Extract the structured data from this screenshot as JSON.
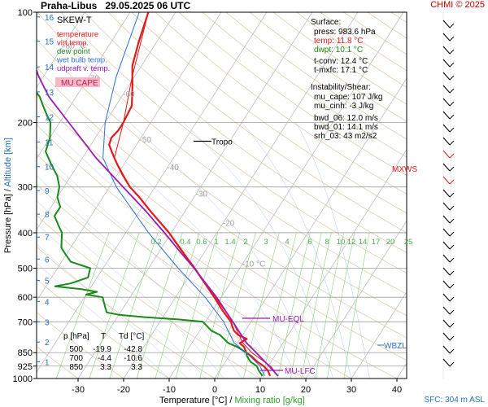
{
  "header": {
    "station": "Praha-Libus",
    "datetime": "29.05.2025 06 UTC",
    "copyright": "CHMI © 2025"
  },
  "footer": {
    "sfc": "SFC: 304 m ASL",
    "xlabel_temp": "Temperature [°C]",
    "xlabel_sep": " / ",
    "xlabel_mix": "Mixing ratio [g/kg]"
  },
  "axes": {
    "ylabel_pressure": "Pressure [hPa]",
    "ylabel_sep": "/",
    "ylabel_alt": "Altitude [km]"
  },
  "legend": {
    "title": "SKEW-T",
    "items": [
      {
        "label": "temperature",
        "color": "#e31a1c"
      },
      {
        "label": "virt.temp.",
        "color": "#e31a1c"
      },
      {
        "label": "dew point",
        "color": "#1a8a1a"
      },
      {
        "label": "wet bulb temp.",
        "color": "#2b6fd6"
      },
      {
        "label": "udpraft v. temp.",
        "color": "#9b1bb3"
      }
    ],
    "mu_cape": "MU CAPE"
  },
  "surface": {
    "title": "Surface:",
    "rows": [
      {
        "label": "press:",
        "value": "983.6 hPa",
        "color": "#000000"
      },
      {
        "label": "temp:",
        "value": "11.8 °C",
        "color": "#e31a1c"
      },
      {
        "label": "dwpt:",
        "value": "10.1 °C",
        "color": "#1a8a1a"
      }
    ],
    "tconv": "t-conv: 12.4 °C",
    "tmxfc": "t-mxfc: 17.1 °C"
  },
  "instability": {
    "title": "Instability/Shear:",
    "rows": [
      "mu_cape: 107 J/kg",
      "mu_cinh: -3 J/kg",
      "bwd_06: 12.0 m/s",
      "bwd_01: 14.1 m/s",
      "srh_03: 43 m2/s2"
    ]
  },
  "table": {
    "header": [
      "p [hPa]",
      "T",
      "Td [°C]"
    ],
    "rows": [
      [
        "500",
        "-19.9",
        "-42.8"
      ],
      [
        "700",
        "-4.4",
        "-10.6"
      ],
      [
        "850",
        "3.3",
        "3.3"
      ]
    ]
  },
  "annotations": {
    "tropo": "Tropo",
    "mxws": "MXWS",
    "mu_eql": "MU-EQL",
    "wbzl": "WBZL",
    "mu_lfc": "MU-LFC"
  },
  "chart_data": {
    "type": "line",
    "y_scale": "log",
    "ylim": [
      1000,
      100
    ],
    "xlim": [
      -35,
      45
    ],
    "x_ticks": [
      "-30",
      "-20",
      "-10",
      "0",
      "10",
      "20",
      "30",
      "40"
    ],
    "pressure_ticks": [
      "100",
      "200",
      "300",
      "400",
      "500",
      "600",
      "700",
      "850",
      "925",
      "1000"
    ],
    "altitude_ticks": [
      "1",
      "2",
      "3",
      "4",
      "5",
      "6",
      "7",
      "8",
      "9",
      "10",
      "11",
      "12",
      "13",
      "14",
      "15",
      "16"
    ],
    "isotherm_labels": [
      "-80 °C",
      "-70",
      "-60",
      "-50",
      "-40",
      "-30",
      "-20",
      "-10 °C"
    ],
    "mixing_ratio_labels": [
      "0.2",
      "0.4",
      "0.6",
      "1",
      "1.4",
      "2",
      "3",
      "4",
      "6",
      "8",
      "10",
      "12",
      "14",
      "17",
      "20",
      "25"
    ],
    "series": [
      {
        "key": "temperature",
        "color": "#e31a1c",
        "points": [
          [
            983.6,
            11.8
          ],
          [
            950,
            10.5
          ],
          [
            925,
            9.0
          ],
          [
            900,
            7.0
          ],
          [
            870,
            5.0
          ],
          [
            850,
            3.3
          ],
          [
            820,
            2.0
          ],
          [
            800,
            0.5
          ],
          [
            780,
            1.5
          ],
          [
            760,
            -1.0
          ],
          [
            740,
            -2.5
          ],
          [
            720,
            -3.5
          ],
          [
            700,
            -4.4
          ],
          [
            650,
            -8.0
          ],
          [
            600,
            -11.5
          ],
          [
            550,
            -15.5
          ],
          [
            500,
            -19.9
          ],
          [
            450,
            -25
          ],
          [
            400,
            -30.5
          ],
          [
            350,
            -37.5
          ],
          [
            320,
            -42
          ],
          [
            300,
            -45.5
          ],
          [
            280,
            -48.5
          ],
          [
            260,
            -51.5
          ],
          [
            250,
            -53
          ],
          [
            240,
            -54.5
          ],
          [
            230,
            -56
          ],
          [
            220,
            -56.5
          ],
          [
            210,
            -56
          ],
          [
            200,
            -56
          ],
          [
            180,
            -56.5
          ],
          [
            160,
            -59
          ],
          [
            140,
            -62
          ],
          [
            120,
            -64
          ],
          [
            100,
            -66
          ]
        ]
      },
      {
        "key": "virt_temp",
        "color": "#e31a1c",
        "points": [
          [
            983.6,
            13.5
          ],
          [
            925,
            10.5
          ],
          [
            850,
            4.5
          ],
          [
            800,
            1.2
          ],
          [
            700,
            -4.0
          ],
          [
            600,
            -11.3
          ],
          [
            500,
            -19.8
          ],
          [
            400,
            -30.4
          ],
          [
            300,
            -45.5
          ],
          [
            250,
            -53
          ],
          [
            200,
            -56
          ],
          [
            150,
            -60.5
          ],
          [
            100,
            -66
          ]
        ]
      },
      {
        "key": "dew_point",
        "color": "#1a8a1a",
        "points": [
          [
            983.6,
            10.1
          ],
          [
            950,
            8.5
          ],
          [
            925,
            7.5
          ],
          [
            900,
            5.5
          ],
          [
            870,
            4.0
          ],
          [
            850,
            3.3
          ],
          [
            820,
            0.5
          ],
          [
            800,
            -2.0
          ],
          [
            780,
            -3.5
          ],
          [
            760,
            -5.0
          ],
          [
            740,
            -7.5
          ],
          [
            720,
            -9.0
          ],
          [
            700,
            -10.6
          ],
          [
            690,
            -16
          ],
          [
            680,
            -24
          ],
          [
            670,
            -30
          ],
          [
            660,
            -33
          ],
          [
            640,
            -34
          ],
          [
            620,
            -35
          ],
          [
            600,
            -36
          ],
          [
            590,
            -40
          ],
          [
            580,
            -38
          ],
          [
            570,
            -42
          ],
          [
            560,
            -48
          ],
          [
            550,
            -45
          ],
          [
            530,
            -42
          ],
          [
            500,
            -42.8
          ],
          [
            480,
            -48
          ],
          [
            460,
            -50
          ],
          [
            440,
            -52
          ],
          [
            420,
            -53
          ],
          [
            400,
            -54
          ],
          [
            380,
            -56
          ],
          [
            360,
            -58
          ],
          [
            340,
            -58
          ],
          [
            320,
            -60
          ],
          [
            300,
            -61
          ],
          [
            280,
            -63
          ],
          [
            260,
            -66
          ],
          [
            240,
            -69
          ],
          [
            220,
            -70
          ],
          [
            200,
            -72
          ],
          [
            190,
            -74
          ],
          [
            180,
            -76
          ],
          [
            170,
            -78
          ],
          [
            160,
            -81
          ],
          [
            150,
            -82
          ],
          [
            140,
            -84
          ],
          [
            130,
            -86
          ],
          [
            120,
            -88
          ],
          [
            110,
            -90
          ],
          [
            100,
            -92
          ]
        ]
      },
      {
        "key": "wet_bulb",
        "color": "#2b6fd6",
        "points": [
          [
            983.6,
            10.6
          ],
          [
            925,
            8.2
          ],
          [
            850,
            3.3
          ],
          [
            800,
            -0.7
          ],
          [
            700,
            -6.0
          ],
          [
            600,
            -13.5
          ],
          [
            500,
            -23.5
          ],
          [
            400,
            -35
          ],
          [
            300,
            -48.5
          ],
          [
            250,
            -55.5
          ],
          [
            200,
            -60
          ],
          [
            150,
            -64
          ],
          [
            100,
            -68
          ]
        ]
      },
      {
        "key": "updraft_vtemp",
        "color": "#9b1bb3",
        "points": [
          [
            983.6,
            13.5
          ],
          [
            925,
            10.2
          ],
          [
            850,
            5.5
          ],
          [
            800,
            2.0
          ],
          [
            700,
            -4.0
          ],
          [
            600,
            -11.0
          ],
          [
            500,
            -20.0
          ],
          [
            450,
            -25.5
          ],
          [
            400,
            -31.5
          ],
          [
            350,
            -38.5
          ],
          [
            300,
            -47
          ],
          [
            250,
            -57
          ],
          [
            200,
            -68
          ],
          [
            170,
            -76
          ],
          [
            150,
            -81
          ],
          [
            130,
            -86
          ],
          [
            115,
            -90
          ],
          [
            100,
            -94
          ]
        ]
      }
    ]
  }
}
